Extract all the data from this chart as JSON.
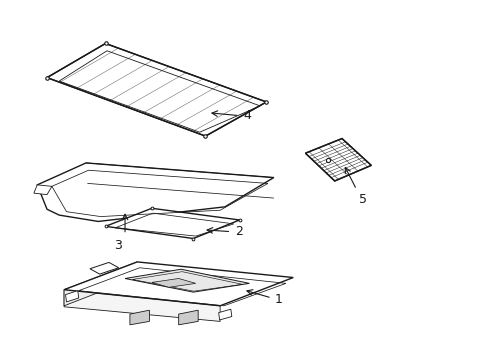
{
  "background_color": "#ffffff",
  "line_color": "#1a1a1a",
  "line_width": 1.0,
  "label_fontsize": 9,
  "figsize": [
    4.89,
    3.6
  ],
  "dpi": 100
}
